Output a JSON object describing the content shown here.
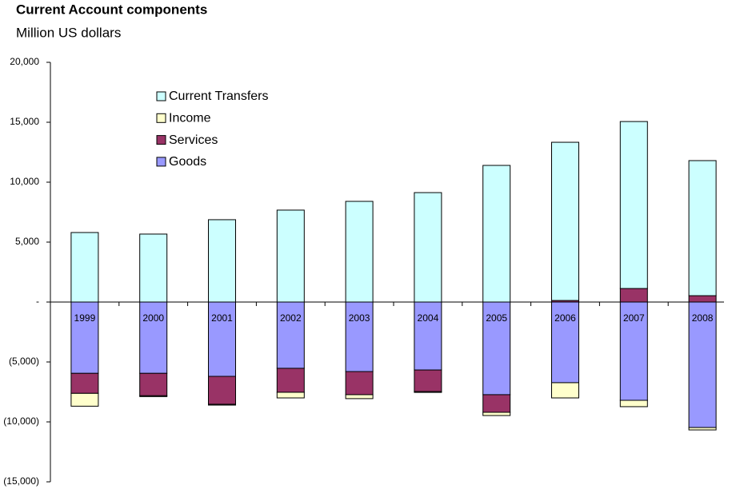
{
  "chart_data": {
    "type": "stacked-bar",
    "title": "Current Account components",
    "subtitle": "Million US dollars",
    "categories": [
      "1999",
      "2000",
      "2001",
      "2002",
      "2003",
      "2004",
      "2005",
      "2006",
      "2007",
      "2008"
    ],
    "series": [
      {
        "name": "Goods",
        "color": "#9999ff",
        "values": [
          -5950,
          -5950,
          -6200,
          -5530,
          -5800,
          -5670,
          -7730,
          -6730,
          -8200,
          -10470
        ]
      },
      {
        "name": "Services",
        "color": "#993366",
        "values": [
          -1670,
          -1870,
          -2330,
          -2000,
          -1930,
          -1800,
          -1470,
          130,
          1130,
          530
        ]
      },
      {
        "name": "Income",
        "color": "#ffffcc",
        "values": [
          -1070,
          -70,
          -70,
          -470,
          -330,
          -70,
          -270,
          -1270,
          -530,
          -200
        ]
      },
      {
        "name": "Current Transfers",
        "color": "#ccffff",
        "values": [
          5800,
          5670,
          6870,
          7670,
          8400,
          9130,
          11400,
          13200,
          13930,
          11270
        ]
      }
    ],
    "ylim": [
      -15000,
      20000
    ],
    "yticks": [
      {
        "value": -15000,
        "label": "(15,000)"
      },
      {
        "value": -10000,
        "label": "(10,000)"
      },
      {
        "value": -5000,
        "label": "(5,000)"
      },
      {
        "value": 0,
        "label": "-"
      },
      {
        "value": 5000,
        "label": "5,000"
      },
      {
        "value": 10000,
        "label": "10,000"
      },
      {
        "value": 15000,
        "label": "15,000"
      },
      {
        "value": 20000,
        "label": "20,000"
      }
    ],
    "legend": "upper-left"
  }
}
